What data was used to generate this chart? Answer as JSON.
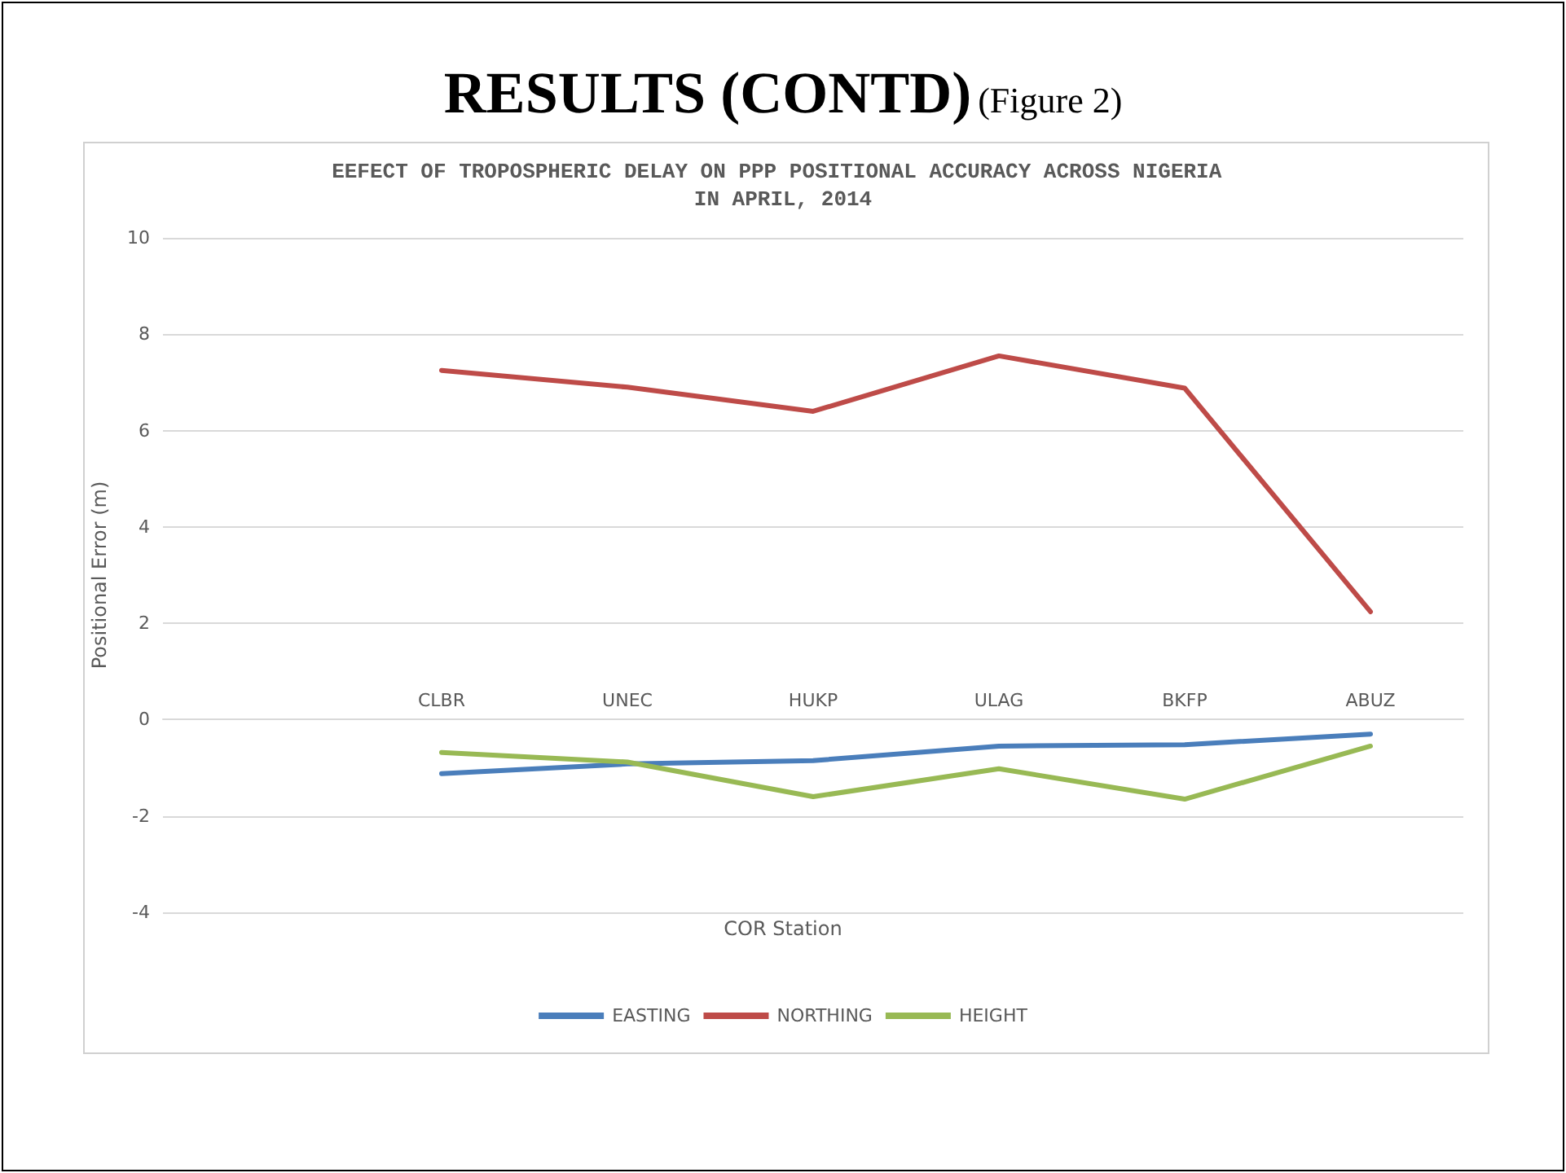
{
  "chart_data": {
    "type": "line",
    "title": "EEFECT OF TROPOSPHERIC DELAY ON PPP POSITIONAL ACCURACY ACROSS NIGERIA IN APRIL, 2014",
    "annotations": [
      "RESULTS (CONTD)",
      "(Figure 2)"
    ],
    "xlabel": "COR Station",
    "ylabel": "Positional Error (m)",
    "categories": [
      null,
      "CLBR",
      "UNEC",
      "HUKP",
      "ULAG",
      "BKFP",
      "ABUZ"
    ],
    "series": [
      {
        "name": "EASTING",
        "color": "#4a7ebb",
        "values": [
          null,
          -1.12,
          -0.92,
          -0.85,
          -0.55,
          -0.52,
          -0.3
        ]
      },
      {
        "name": "NORTHING",
        "color": "#be4b48",
        "values": [
          null,
          7.25,
          6.9,
          6.4,
          7.55,
          6.88,
          2.24
        ]
      },
      {
        "name": "HEIGHT",
        "color": "#98b954",
        "values": [
          null,
          -0.68,
          -0.88,
          -1.6,
          -1.02,
          -1.65,
          -0.55
        ]
      }
    ],
    "ylim": [
      -4,
      10
    ],
    "yticks": [
      -4,
      -2,
      0,
      2,
      4,
      6,
      8,
      10
    ],
    "grid": "y",
    "legend": "bottom",
    "marker": "none",
    "line_style": "solid"
  }
}
